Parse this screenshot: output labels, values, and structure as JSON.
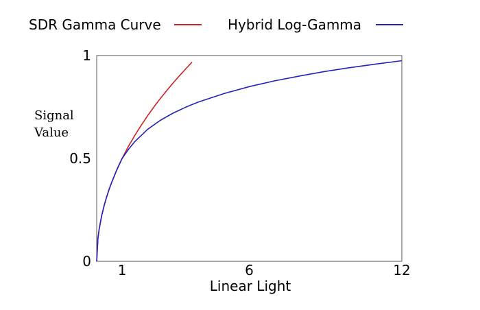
{
  "chart_data": {
    "type": "line",
    "xlabel": "Linear Light",
    "ylabel_lines": [
      "Signal",
      "Value"
    ],
    "xlim": [
      0,
      12
    ],
    "ylim": [
      0,
      1
    ],
    "xticks": [
      {
        "value": 1,
        "label": "1"
      },
      {
        "value": 6,
        "label": "6"
      },
      {
        "value": 12,
        "label": "12"
      }
    ],
    "yticks": [
      {
        "value": 0,
        "label": "0"
      },
      {
        "value": 0.5,
        "label": "0.5"
      },
      {
        "value": 1,
        "label": "1"
      }
    ],
    "grid": false,
    "legend_position": "top",
    "series": [
      {
        "name": "SDR Gamma Curve",
        "color": "#cc2222",
        "x": [
          0,
          0.05,
          0.1,
          0.2,
          0.3,
          0.4,
          0.5,
          0.6,
          0.8,
          1,
          1.25,
          1.5,
          1.75,
          2,
          2.25,
          2.5,
          2.75,
          3,
          3.25,
          3.5,
          3.75
        ],
        "y": [
          0,
          0.112,
          0.158,
          0.224,
          0.274,
          0.316,
          0.354,
          0.387,
          0.447,
          0.5,
          0.559,
          0.612,
          0.661,
          0.707,
          0.75,
          0.791,
          0.829,
          0.866,
          0.901,
          0.935,
          0.968
        ]
      },
      {
        "name": "Hybrid Log-Gamma",
        "color": "#2222bb",
        "x": [
          0,
          0.05,
          0.1,
          0.2,
          0.3,
          0.4,
          0.5,
          0.6,
          0.8,
          1,
          1.25,
          1.5,
          2,
          2.5,
          3,
          3.5,
          4,
          5,
          6,
          7,
          8,
          9,
          10,
          11,
          12
        ],
        "y": [
          0,
          0.112,
          0.158,
          0.224,
          0.274,
          0.316,
          0.354,
          0.387,
          0.447,
          0.5,
          0.544,
          0.582,
          0.641,
          0.685,
          0.72,
          0.749,
          0.774,
          0.815,
          0.849,
          0.877,
          0.901,
          0.923,
          0.942,
          0.959,
          0.975
        ]
      }
    ]
  }
}
